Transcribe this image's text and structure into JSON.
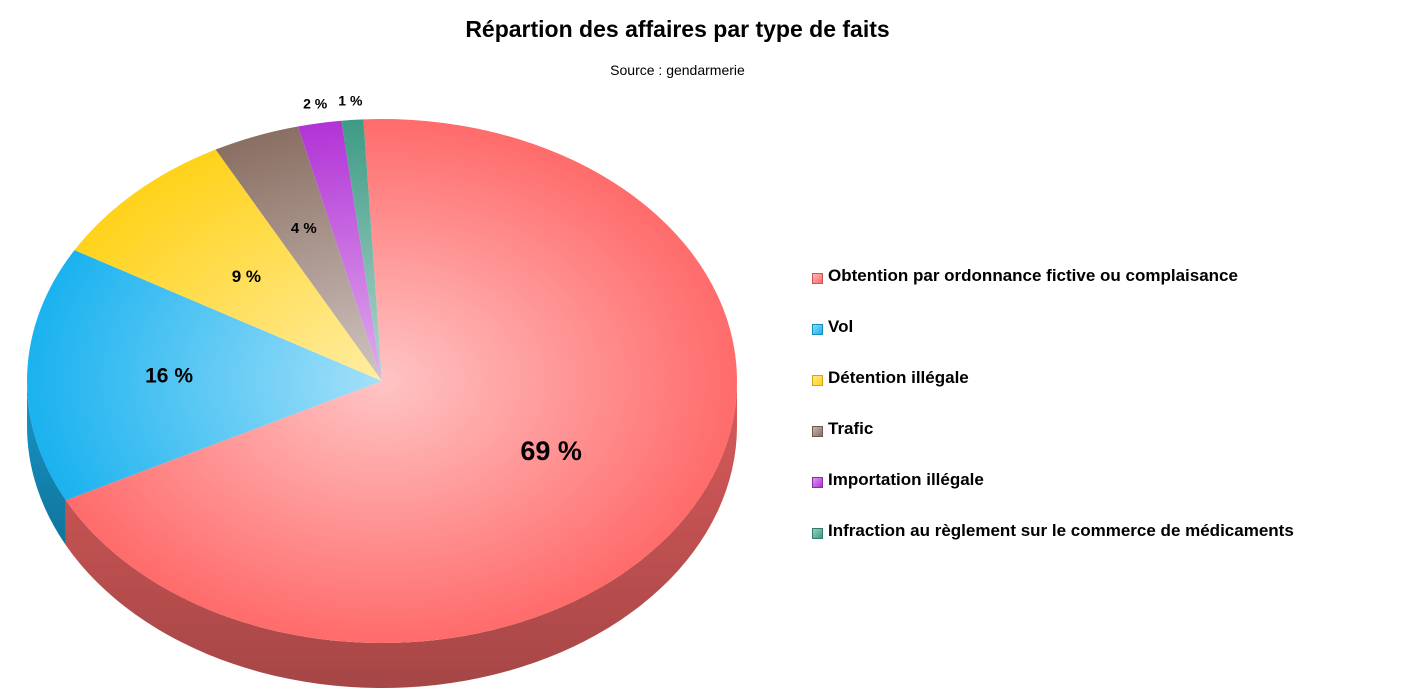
{
  "chart_data": {
    "type": "pie",
    "title": "Répartion des affaires par type de faits",
    "subtitle": "Source : gendarmerie",
    "start_angle_deg": -3,
    "slices": [
      {
        "label": "Obtention par ordonnance fictive ou complaisance",
        "value": 69,
        "display": "69 %",
        "color": "#ff6b6b"
      },
      {
        "label": "Vol",
        "value": 16,
        "display": "16 %",
        "color": "#1ab2ef"
      },
      {
        "label": "Détention illégale",
        "value": 9,
        "display": "9 %",
        "color": "#ffd21a"
      },
      {
        "label": "Trafic",
        "value": 4,
        "display": "4 %",
        "color": "#8a6f63"
      },
      {
        "label": "Importation illégale",
        "value": 2,
        "display": "2 %",
        "color": "#b233d6"
      },
      {
        "label": "Infraction au règlement sur le commerce de médicaments",
        "value": 1,
        "display": "1 %",
        "color": "#3d9b84"
      }
    ],
    "legend_position": "right"
  }
}
